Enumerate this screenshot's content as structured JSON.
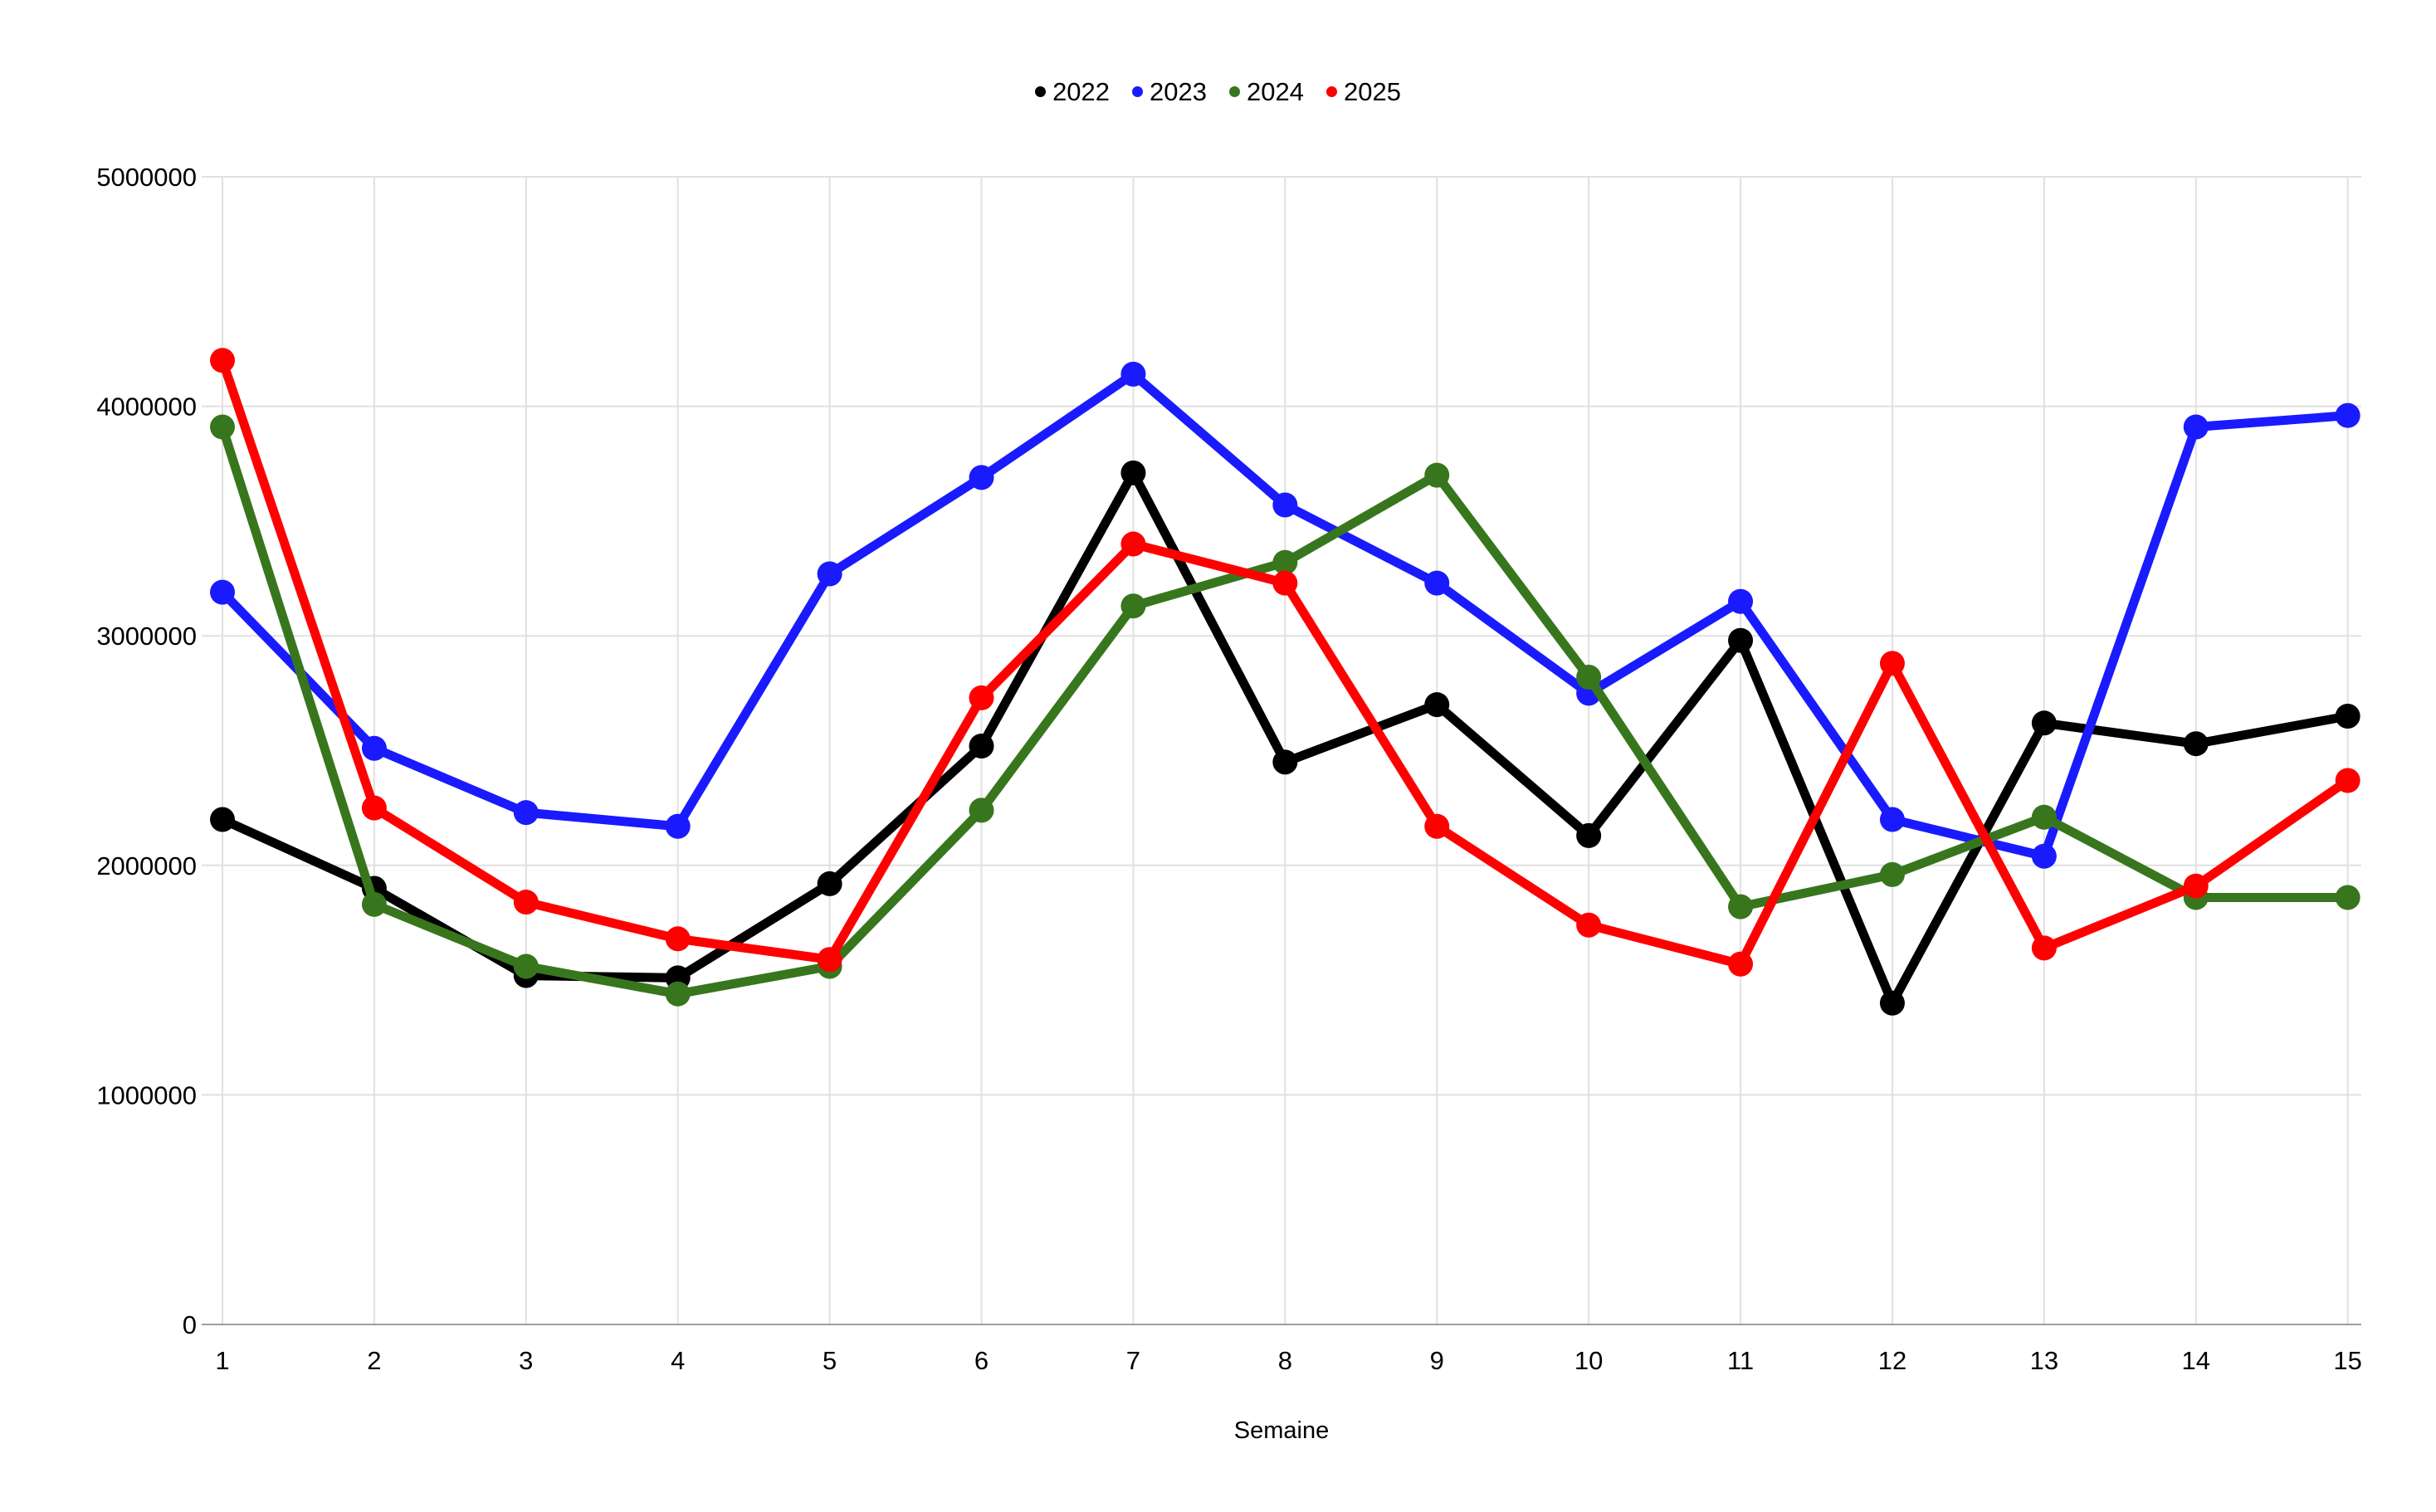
{
  "chart_data": {
    "type": "line",
    "title": "",
    "xlabel": "Semaine",
    "ylabel": "",
    "x": [
      "1",
      "2",
      "3",
      "4",
      "5",
      "6",
      "7",
      "8",
      "9",
      "10",
      "11",
      "12",
      "13",
      "14",
      "15"
    ],
    "y_ticks": [
      "0",
      "1000000",
      "2000000",
      "3000000",
      "4000000",
      "5000000"
    ],
    "y_tick_values": [
      0,
      1000000,
      2000000,
      3000000,
      4000000,
      5000000
    ],
    "ylim": [
      0,
      5000000
    ],
    "grid": true,
    "legend_position": "top-center",
    "marker": "circle",
    "series": [
      {
        "name": "2022",
        "color": "#000000",
        "values": [
          2200000,
          1900000,
          1520000,
          1510000,
          1920000,
          2520000,
          3710000,
          2450000,
          2700000,
          2130000,
          2980000,
          1400000,
          2620000,
          2530000,
          2650000
        ]
      },
      {
        "name": "2023",
        "color": "#1a1aff",
        "values": [
          3190000,
          2510000,
          2230000,
          2170000,
          3270000,
          3690000,
          4140000,
          3570000,
          3230000,
          2750000,
          3150000,
          2200000,
          2040000,
          3910000,
          3960000
        ]
      },
      {
        "name": "2024",
        "color": "#38761d",
        "values": [
          3910000,
          1830000,
          1560000,
          1440000,
          1560000,
          2240000,
          3130000,
          3320000,
          3700000,
          2820000,
          1820000,
          1960000,
          2210000,
          1860000,
          1860000
        ]
      },
      {
        "name": "2025",
        "color": "#ff0000",
        "values": [
          4200000,
          2250000,
          1840000,
          1680000,
          1590000,
          2730000,
          3400000,
          3230000,
          2170000,
          1740000,
          1570000,
          2880000,
          1640000,
          1910000,
          2370000
        ]
      }
    ],
    "colors": {
      "gridline": "#e0e0e0",
      "axis": "#9e9e9e",
      "text": "#000000"
    }
  }
}
